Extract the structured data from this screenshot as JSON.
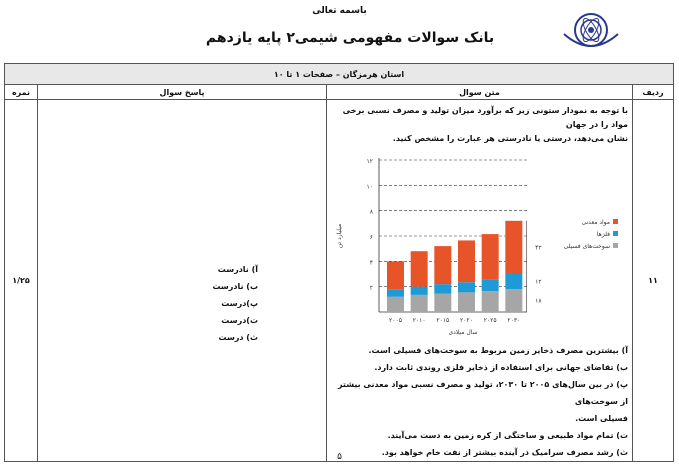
{
  "header": {
    "bismillah": "باسمه تعالی",
    "title": "بانک سوالات مفهومی شیمی۲ پایه یازدهم",
    "logo_text": "دبیرخانه راهبری کشوری درس شیمی استان هرمزگان"
  },
  "table": {
    "section_title": "استان هرمزگان – صفحات ۱ تا ۱۰",
    "col_radif": "ردیف",
    "col_question": "متن سوال",
    "col_answer": "پاسخ سوال",
    "col_score": "نمره",
    "row": {
      "radif": "۱۱",
      "score": "۱/۲۵",
      "question_lines": [
        "با توجه به نمودار ستونی زیر که برآورد میزان تولید و مصرف نسبی برخی مواد را در جهان",
        "نشان می‌دهد، درستی یا نادرستی هر عبارت را مشخص کنید."
      ],
      "statements": [
        "آ) بیشترین مصرف ذخایر زمین مربوط به سوخت‌های فسیلی است.",
        "ب) تقاضای جهانی برای استفاده از ذخایر فلزی روندی ثابت دارد.",
        "پ) در بین سال‌های ۲۰۰۵ تا ۲۰۳۰، تولید و مصرف نسبی مواد معدنی بیشتر از سوخت‌های",
        "فسیلی است.",
        "ت) تمام مواد طبیعی و ساختگی از کره زمین به دست می‌آیند.",
        "ث) رشد مصرف سرامیک در آینده بیشتر از نفت خام خواهد بود."
      ],
      "answers": [
        "آ) نادرست",
        "ب) نادرست",
        "پ)درست",
        "ت)درست",
        "ث) درست"
      ]
    }
  },
  "chart_data": {
    "type": "bar",
    "stacked": true,
    "categories": [
      "۲۰۰۵",
      "۲۰۱۰",
      "۲۰۱۵",
      "۲۰۲۰",
      "۲۰۲۵",
      "۲۰۳۰"
    ],
    "series": [
      {
        "name": "سوخت‌های فسیلی",
        "color": "#a6a6a6",
        "values": [
          1.2,
          1.35,
          1.45,
          1.55,
          1.65,
          1.8
        ]
      },
      {
        "name": "فلزها",
        "color": "#1e9bd7",
        "values": [
          0.6,
          0.65,
          0.75,
          0.8,
          0.9,
          1.2
        ]
      },
      {
        "name": "مواد معدنی",
        "color": "#e8542a",
        "values": [
          2.2,
          2.8,
          3.0,
          3.3,
          3.6,
          4.2
        ]
      }
    ],
    "ylabel": "میلیارد تن",
    "xlabel": "سال میلادی",
    "yticks": [
      "۲",
      "۴",
      "۶",
      "۸",
      "۱۰",
      "۱۲"
    ],
    "ylim": [
      0,
      12
    ],
    "grid": true,
    "legend": "right",
    "annotations": [
      "۴۲",
      "۱۲",
      "۱۸"
    ]
  },
  "footer": {
    "page_number": "۵"
  }
}
